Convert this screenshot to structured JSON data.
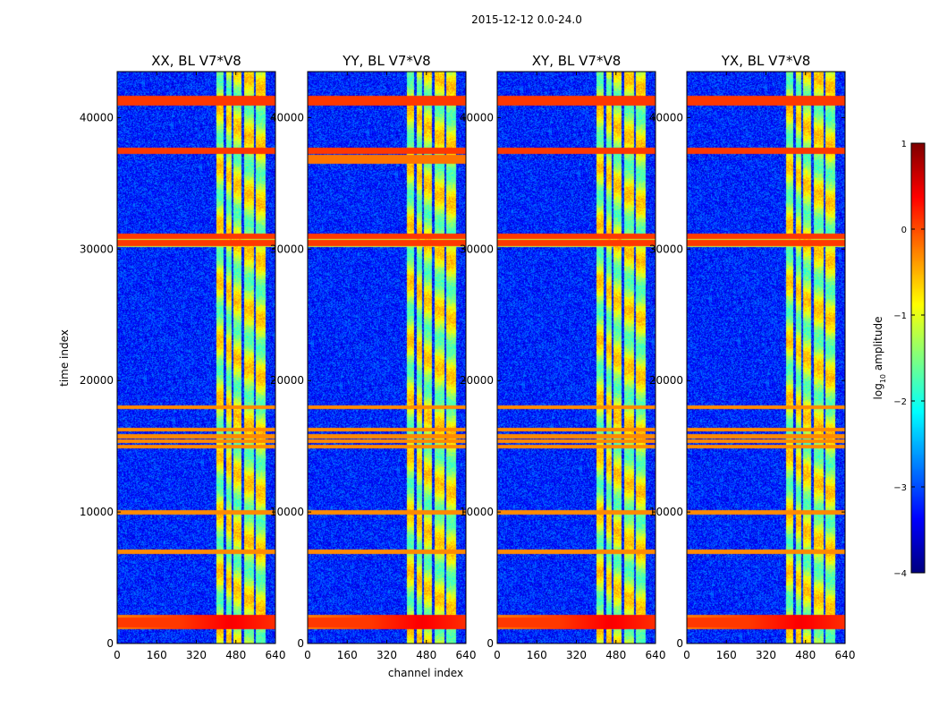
{
  "suptitle": "2015-12-12 0.0-24.0",
  "chart_data": {
    "type": "heatmap",
    "xlabel": "channel index",
    "ylabel": "time index",
    "xlim": [
      0,
      640
    ],
    "ylim": [
      0,
      43500
    ],
    "xticks": [
      "0",
      "160",
      "320",
      "480",
      "640"
    ],
    "xtick_values": [
      0,
      160,
      320,
      480,
      640
    ],
    "yticks": [
      "0",
      "10000",
      "20000",
      "30000",
      "40000"
    ],
    "ytick_values": [
      0,
      10000,
      20000,
      30000,
      40000
    ],
    "panels": [
      {
        "title": "XX, BL V7*V8",
        "pol": "XX"
      },
      {
        "title": "YY, BL V7*V8",
        "pol": "YY"
      },
      {
        "title": "XY, BL V7*V8",
        "pol": "XY"
      },
      {
        "title": "YX, BL V7*V8",
        "pol": "YX"
      }
    ],
    "colorbar": {
      "label": "log10 amplitude",
      "label_main": "log",
      "label_sub": "10",
      "label_rest": " amplitude",
      "range": [
        -4,
        1
      ],
      "ticks": [
        "1",
        "0",
        "−1",
        "−2",
        "−3",
        "−4"
      ],
      "tick_values": [
        1,
        0,
        -1,
        -2,
        -3,
        -4
      ],
      "colormap": "jet"
    },
    "features": {
      "strong_rows_time": [
        1500,
        1800,
        30500,
        31000,
        37500,
        41200,
        41500
      ],
      "moderate_rows_time": [
        15000,
        15400,
        15800,
        16300,
        18000,
        10000,
        7000
      ],
      "bright_channel_bands": [
        [
          400,
          430
        ],
        [
          440,
          460
        ],
        [
          470,
          500
        ],
        [
          510,
          550
        ],
        [
          560,
          600
        ]
      ],
      "base_level": -3.2
    }
  }
}
